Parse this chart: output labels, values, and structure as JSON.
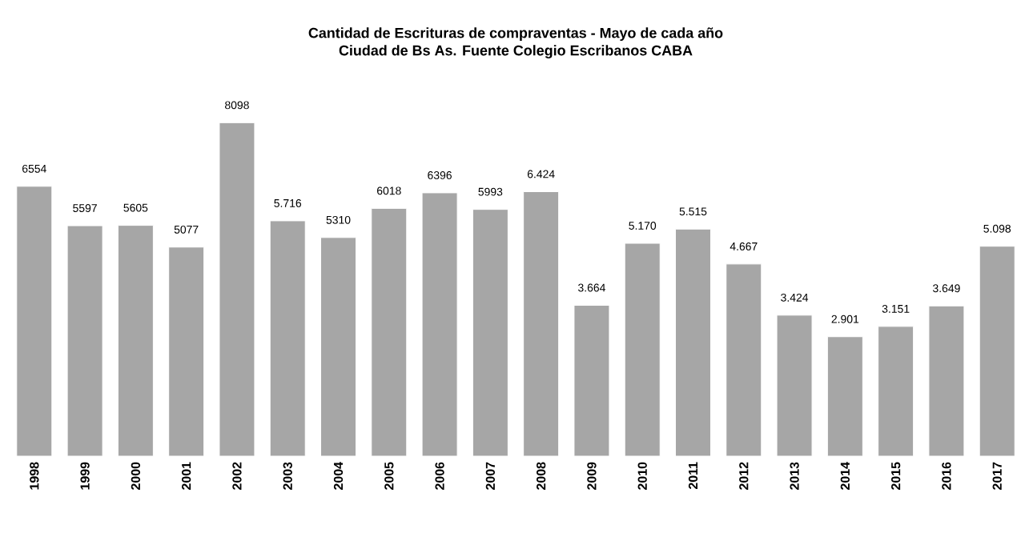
{
  "chart_data": {
    "type": "bar",
    "title": "Cantidad de Escrituras de compraventas - Mayo de cada año",
    "subtitle": "Ciudad de Bs As. Fuente Colegio Escribanos CABA",
    "categories": [
      "1998",
      "1999",
      "2000",
      "2001",
      "2002",
      "2003",
      "2004",
      "2005",
      "2006",
      "2007",
      "2008",
      "2009",
      "2010",
      "2011",
      "2012",
      "2013",
      "2014",
      "2015",
      "2016",
      "2017"
    ],
    "values": [
      6554,
      5597,
      5605,
      5077,
      8098,
      5716,
      5310,
      6018,
      6396,
      5993,
      6424,
      3664,
      5170,
      5515,
      4667,
      3424,
      2901,
      3151,
      3649,
      5098
    ],
    "value_labels": [
      "6554",
      "5597",
      "5605",
      "5077",
      "8098",
      "5.716",
      "5310",
      "6018",
      "6396",
      "5993",
      "6.424",
      "3.664",
      "5.170",
      "5.515",
      "4.667",
      "3.424",
      "2.901",
      "3.151",
      "3.649",
      "5.098"
    ],
    "color": "#a6a6a6"
  }
}
